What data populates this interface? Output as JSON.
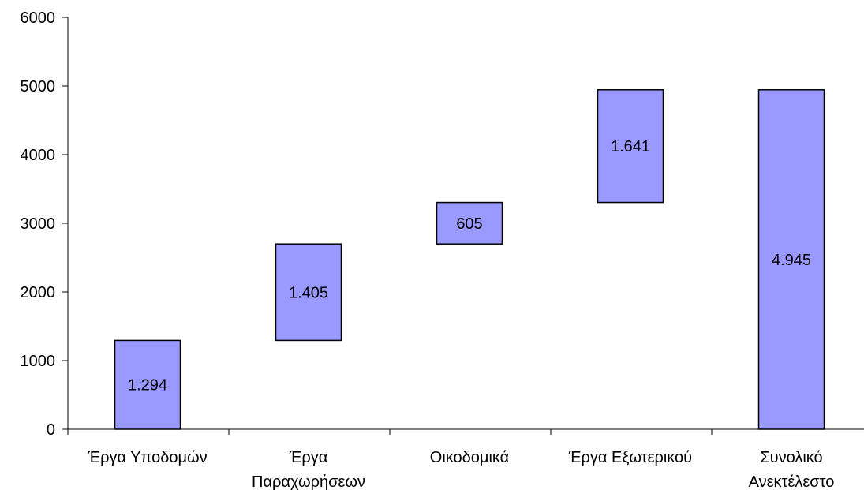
{
  "chart_data": {
    "type": "bar",
    "subtype": "waterfall",
    "categories": [
      [
        "Έργα Υποδομών"
      ],
      [
        "Έργα",
        "Παραχωρήσεων"
      ],
      [
        "Οικοδομικά"
      ],
      [
        "Έργα Εξωτερικού"
      ],
      [
        "Συνολικό",
        "Ανεκτέλεστο"
      ]
    ],
    "series": [
      {
        "values": [
          1294,
          1405,
          605,
          1641,
          4945
        ],
        "base": [
          0,
          1294,
          2699,
          3304,
          0
        ],
        "labels": [
          "1.294",
          "1.405",
          "605",
          "1.641",
          "4.945"
        ]
      }
    ],
    "ylim": [
      0,
      6000
    ],
    "yticks": [
      0,
      1000,
      2000,
      3000,
      4000,
      5000,
      6000
    ],
    "ytick_labels": [
      "0",
      "1000",
      "2000",
      "3000",
      "4000",
      "5000",
      "6000"
    ],
    "grid": false,
    "legend": "none",
    "colors": {
      "bar_fill": "#9999ff",
      "bar_stroke": "#000000",
      "axis": "#000000"
    }
  }
}
